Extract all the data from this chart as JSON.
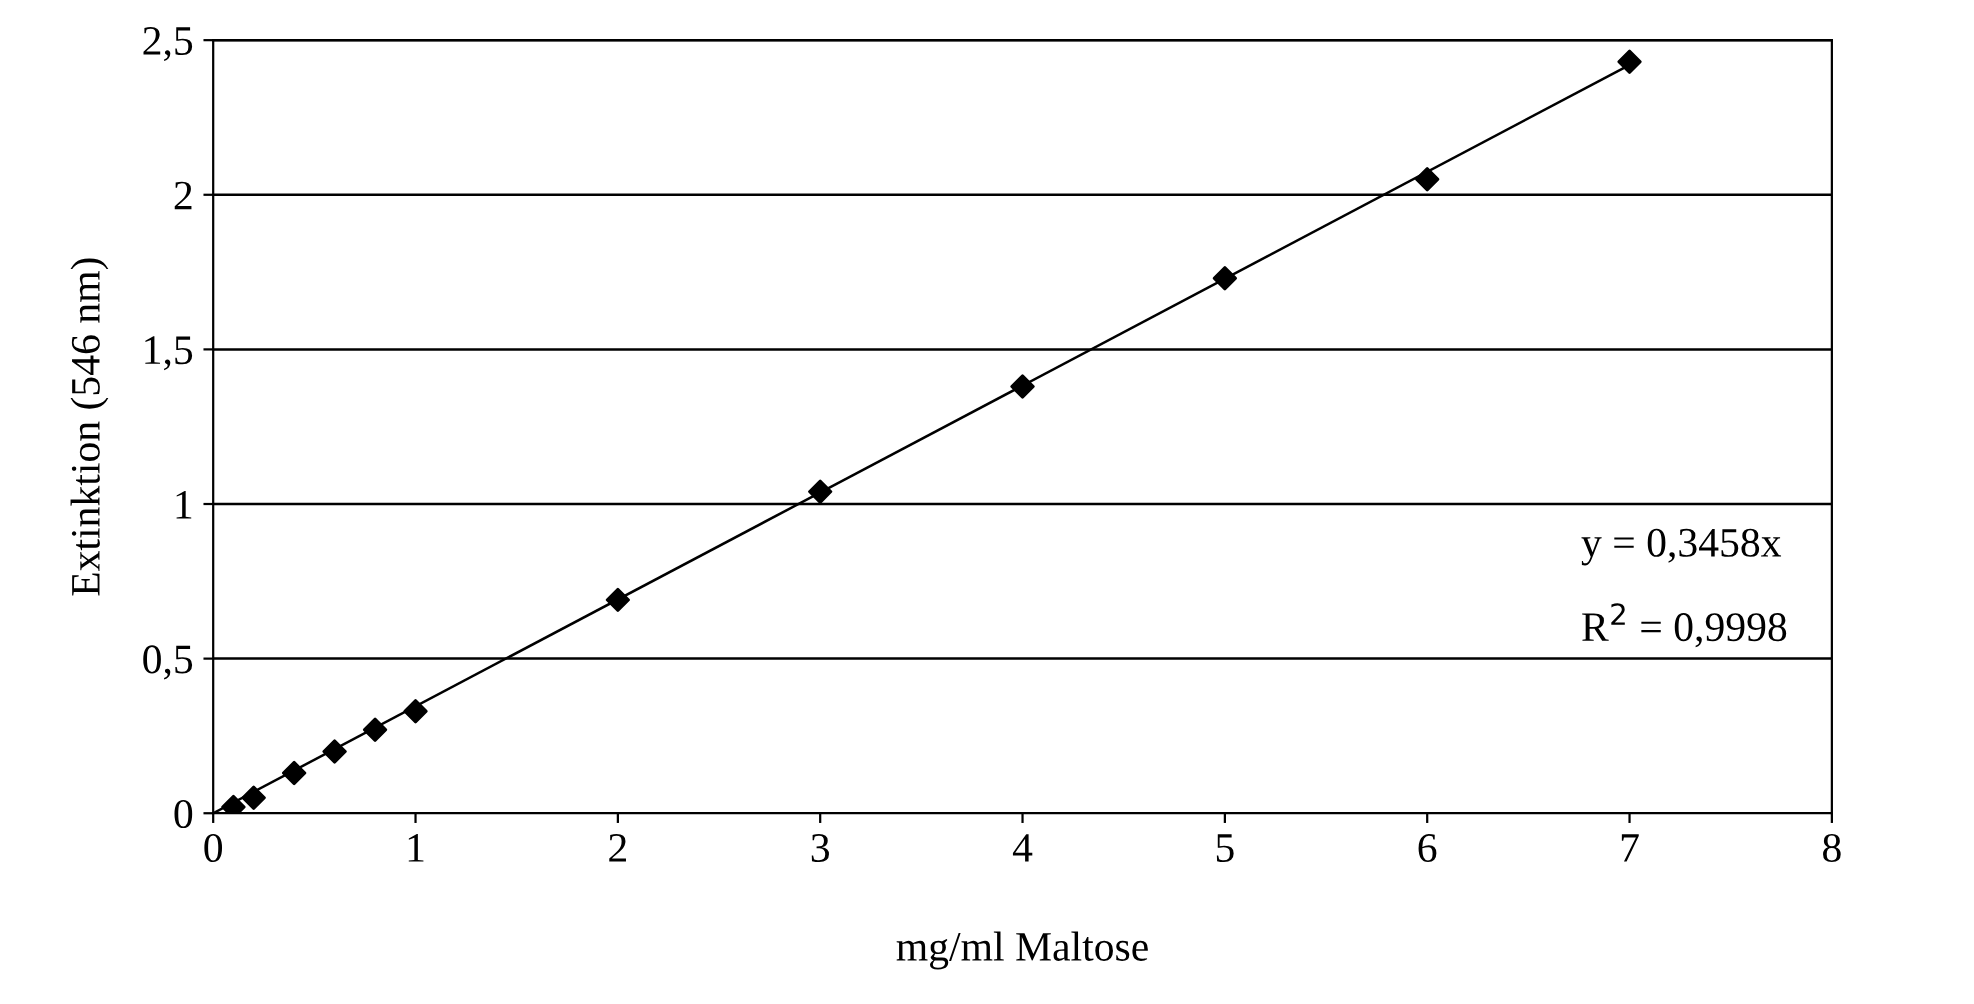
{
  "chart_data": {
    "type": "scatter",
    "xlabel": "mg/ml Maltose",
    "ylabel": "Extinktion (546 nm)",
    "series": [
      {
        "color": "#000000",
        "marker": "diamond",
        "x": [
          0.1,
          0.2,
          0.4,
          0.6,
          0.8,
          1,
          2,
          3,
          4,
          5,
          6,
          7
        ],
        "values": [
          0.02,
          0.05,
          0.13,
          0.2,
          0.27,
          0.33,
          0.69,
          1.04,
          1.38,
          1.73,
          2.05,
          2.43
        ]
      },
      {
        "type": "line",
        "color": "#000000",
        "marker": "none",
        "x": [
          0,
          7
        ],
        "values": [
          0,
          2.42
        ]
      }
    ],
    "xlim": [
      0,
      8
    ],
    "xticks": [
      0,
      1,
      2,
      3,
      4,
      5,
      6,
      7,
      8
    ],
    "ylim": [
      0,
      2.5
    ],
    "yticks": [
      0,
      {
        "value": 0.5,
        "label": "0,5"
      },
      1,
      {
        "value": 1.5,
        "label": "1,5"
      },
      2,
      {
        "value": 2.5,
        "label": "2,5"
      }
    ],
    "grid": "y",
    "legend": false,
    "annotations": [
      "y = 0,3458x",
      "R$^{2}$ = 0,9998"
    ]
  }
}
